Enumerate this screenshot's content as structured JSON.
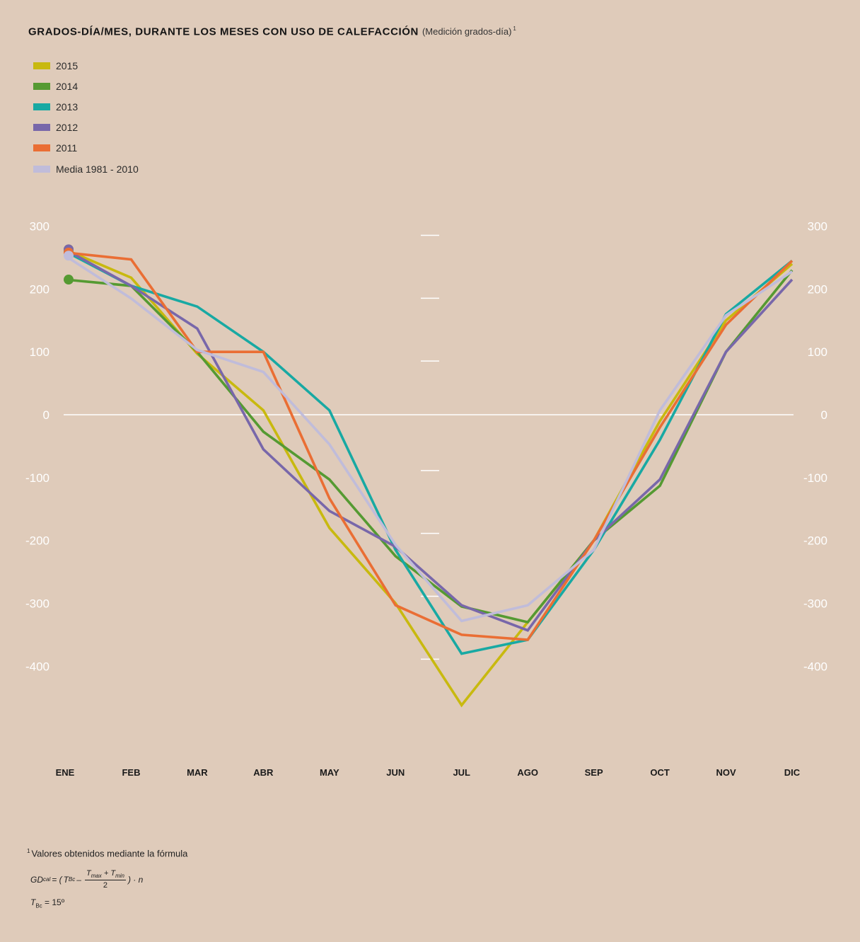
{
  "title": {
    "main": "GRADOS-DÍA/MES, DURANTE LOS MESES CON USO DE CALEFACCIÓN",
    "sub": "(Medición grados-día)",
    "sup": "1"
  },
  "footnote": {
    "sup": "1",
    "text": "Valores obtenidos mediante la fórmula",
    "formula": {
      "lhs": "GD",
      "lhs_sub": "cal",
      "eq": "= (",
      "tbc": "T",
      "tbc_sub": "Bc",
      "minus": "–",
      "num": "T",
      "num_sub1": "max",
      "plus": "+ T",
      "num_sub2": "min",
      "den": "2",
      "tail": ") · n"
    },
    "tbc_line": {
      "t": "T",
      "sub": "Bc",
      "value": "= 15º"
    }
  },
  "colors": {
    "background": "#dfcbba",
    "axis": "#ffffff",
    "s2015": "#c8b90f",
    "s2014": "#559a32",
    "s2013": "#18a9a3",
    "s2012": "#7867aa",
    "s2011": "#ea6e34",
    "s_media": "#c0bcda"
  },
  "chart_data": {
    "type": "line",
    "categories": [
      "ENE",
      "FEB",
      "MAR",
      "ABR",
      "MAY",
      "JUN",
      "JUL",
      "AGO",
      "SEP",
      "OCT",
      "NOV",
      "DIC"
    ],
    "yticks": [
      300,
      200,
      100,
      0,
      -100,
      -200,
      -300,
      -400
    ],
    "ytick_labels": [
      "300",
      "200",
      "100",
      "0",
      "-100",
      "-200",
      "-300",
      "-400"
    ],
    "ylim": [
      -470,
      300
    ],
    "xlabel": "",
    "ylabel": "",
    "legend_position": "top-left",
    "grid": false,
    "series": [
      {
        "name": "2015",
        "color": "#c8b90f",
        "values": [
          263,
          218,
          97,
          7,
          -180,
          -300,
          -462,
          -330,
          -200,
          -10,
          150,
          240
        ]
      },
      {
        "name": "2014",
        "color": "#559a32",
        "values": [
          215,
          205,
          100,
          -27,
          -103,
          -225,
          -305,
          -330,
          -200,
          -113,
          100,
          230
        ]
      },
      {
        "name": "2013",
        "color": "#18a9a3",
        "values": [
          260,
          205,
          172,
          100,
          7,
          -215,
          -380,
          -358,
          -215,
          -40,
          160,
          245
        ]
      },
      {
        "name": "2012",
        "color": "#7867aa",
        "values": [
          263,
          205,
          137,
          -55,
          -153,
          -210,
          -303,
          -343,
          -200,
          -103,
          100,
          215
        ]
      },
      {
        "name": "2011",
        "color": "#ea6e34",
        "values": [
          258,
          247,
          100,
          100,
          -133,
          -303,
          -350,
          -358,
          -200,
          -20,
          143,
          245
        ]
      },
      {
        "name": "Media 1981 - 2010",
        "color": "#c0bcda",
        "values": [
          253,
          185,
          103,
          68,
          -47,
          -207,
          -328,
          -303,
          -215,
          7,
          158,
          228
        ]
      }
    ],
    "marker_first_point": true
  }
}
